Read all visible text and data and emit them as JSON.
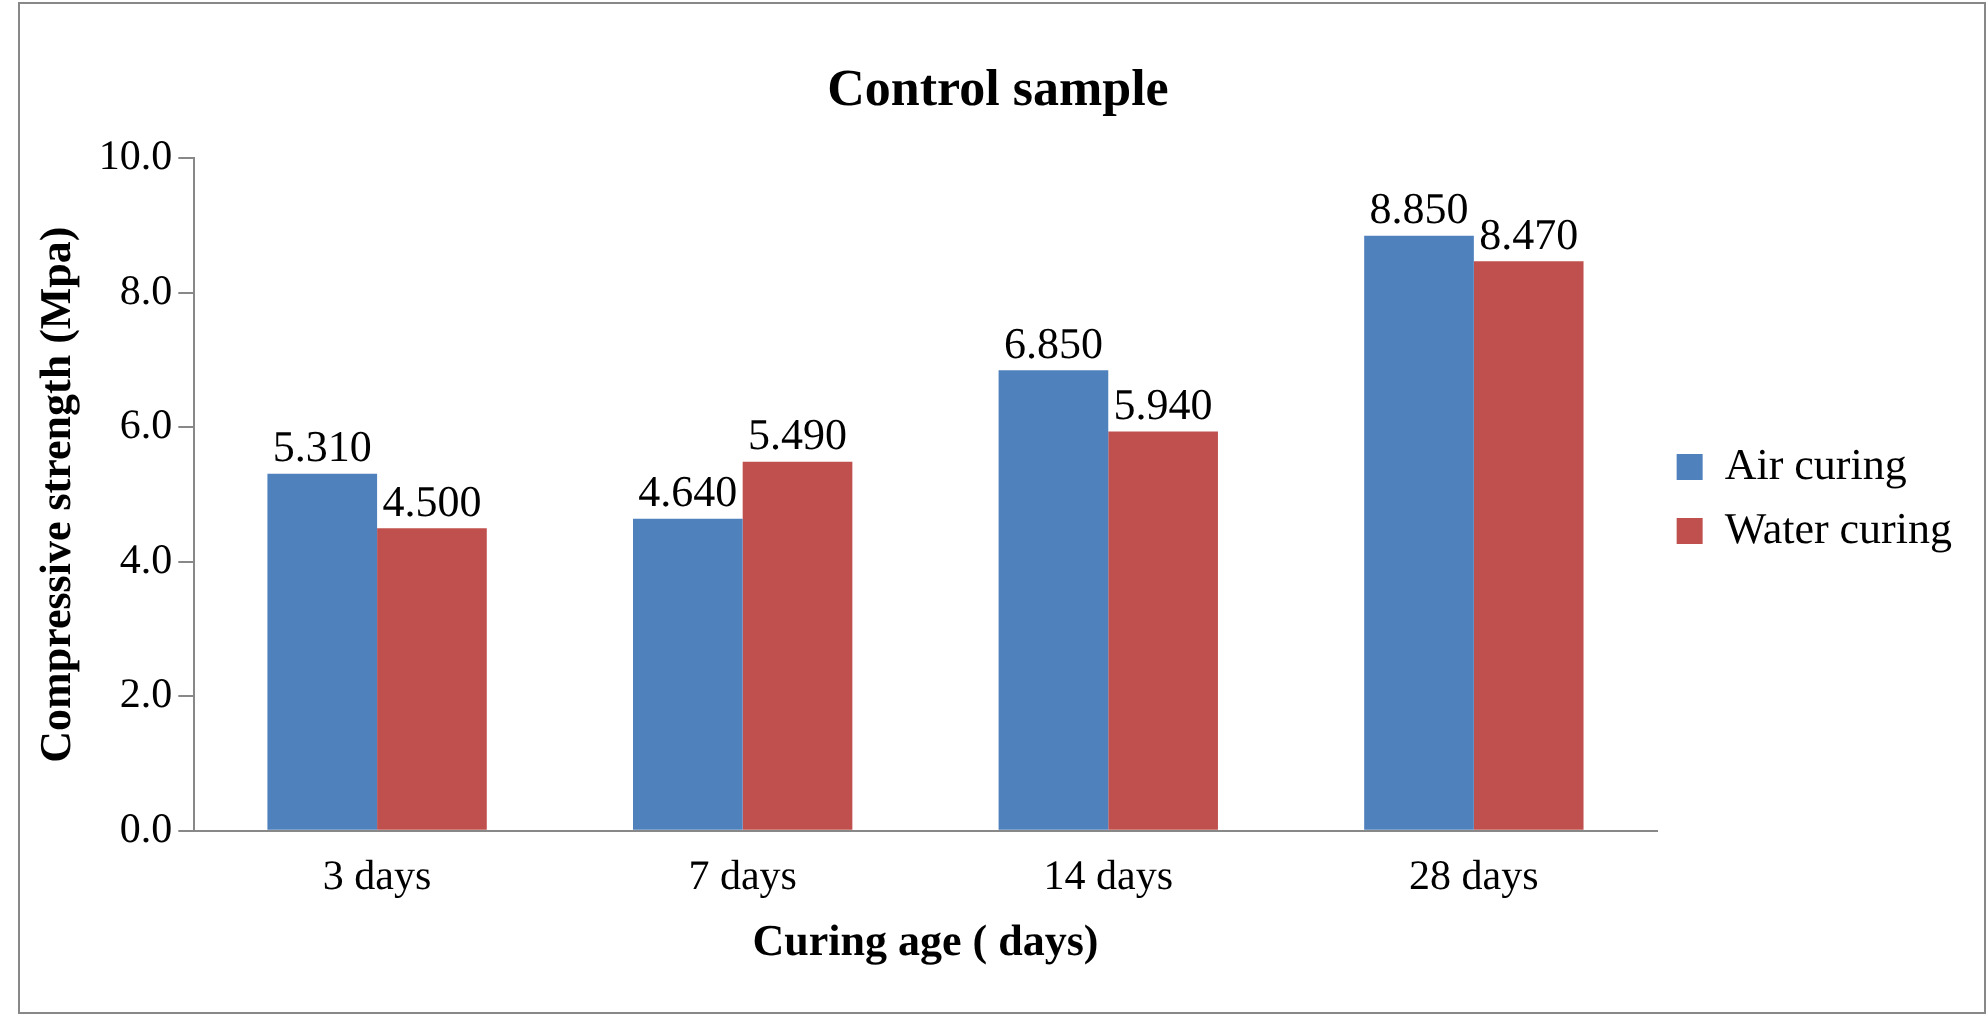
{
  "chart_data": {
    "type": "bar",
    "title": "Control sample",
    "xlabel": "Curing age ( days)",
    "ylabel": "Compressive strength (Mpa)",
    "categories": [
      "3 days",
      "7 days",
      "14 days",
      "28 days"
    ],
    "series": [
      {
        "name": "Air curing",
        "color": "#4f81bd",
        "values": [
          5.31,
          4.64,
          6.85,
          8.85
        ],
        "value_labels": [
          "5.310",
          "4.640",
          "6.850",
          "8.850"
        ]
      },
      {
        "name": "Water curing",
        "color": "#c0504d",
        "values": [
          4.5,
          5.49,
          5.94,
          8.47
        ],
        "value_labels": [
          "4.500",
          "5.490",
          "5.940",
          "8.470"
        ]
      }
    ],
    "ylim": [
      0,
      10
    ],
    "yticks": [
      {
        "value": 0,
        "label": "0.0"
      },
      {
        "value": 2,
        "label": "2.0"
      },
      {
        "value": 4,
        "label": "4.0"
      },
      {
        "value": 6,
        "label": "6.0"
      },
      {
        "value": 8,
        "label": "8.0"
      },
      {
        "value": 10,
        "label": "10.0"
      }
    ],
    "grid": false,
    "legend": "right"
  }
}
